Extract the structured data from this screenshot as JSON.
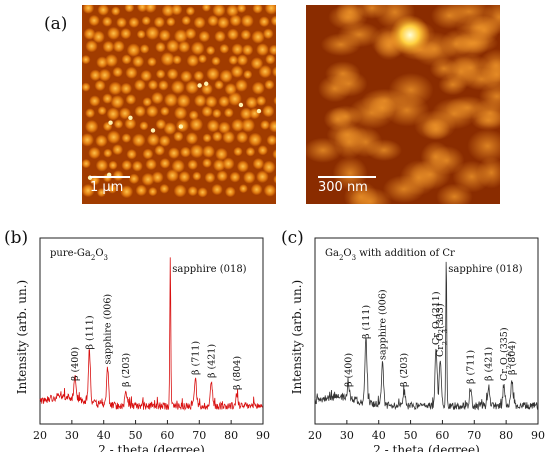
{
  "panel_labels": {
    "a": "(a)",
    "b": "(b)",
    "c": "(c)"
  },
  "afm": {
    "left_scale": "1 µm",
    "right_scale": "300 nm"
  },
  "chart_data": [
    {
      "type": "line",
      "panel": "(b)",
      "title": "pure-Ga2O3",
      "xlabel": "2 - theta (degree)",
      "ylabel": "Intensity (arb. un.)",
      "xlim": [
        20,
        90
      ],
      "xticks": [
        "20",
        "30",
        "40",
        "50",
        "60",
        "70",
        "80",
        "90"
      ],
      "line_color": "#d81010",
      "peaks": [
        {
          "x": 31.0,
          "h": 0.14,
          "label": "β (400)"
        },
        {
          "x": 35.5,
          "h": 0.35,
          "label": "β (111)"
        },
        {
          "x": 41.2,
          "h": 0.25,
          "label": "sapphire (006)"
        },
        {
          "x": 47.0,
          "h": 0.1,
          "label": "β (2̄03)"
        },
        {
          "x": 60.9,
          "h": 1.0,
          "label": "sapphire (018)"
        },
        {
          "x": 68.8,
          "h": 0.18,
          "label": "β (711)"
        },
        {
          "x": 73.8,
          "h": 0.16,
          "label": "β (421)"
        },
        {
          "x": 81.8,
          "h": 0.08,
          "label": "β (8̄04)"
        }
      ]
    },
    {
      "type": "line",
      "panel": "(c)",
      "title": "Ga2O3 with addition of Cr",
      "xlabel": "2 - theta (degree)",
      "ylabel": "Intensity (arb. un.)",
      "xlim": [
        20,
        90
      ],
      "xticks": [
        "20",
        "30",
        "40",
        "50",
        "60",
        "70",
        "80",
        "90"
      ],
      "line_color": "#333333",
      "peaks": [
        {
          "x": 30.5,
          "h": 0.1,
          "label": "β (400)"
        },
        {
          "x": 36.0,
          "h": 0.42,
          "label": "β (111)"
        },
        {
          "x": 41.2,
          "h": 0.28,
          "label": "sapphire (006)"
        },
        {
          "x": 48.0,
          "h": 0.1,
          "label": "β (2̄03)"
        },
        {
          "x": 58.0,
          "h": 0.38,
          "label": "Cr2O3(211)"
        },
        {
          "x": 59.3,
          "h": 0.3,
          "label": "Cr2O3(333)"
        },
        {
          "x": 61.2,
          "h": 1.0,
          "label": "sapphire (018)"
        },
        {
          "x": 68.8,
          "h": 0.12,
          "label": "β (711)"
        },
        {
          "x": 74.5,
          "h": 0.14,
          "label": "β (421)"
        },
        {
          "x": 79.3,
          "h": 0.14,
          "label": "Cr2O3(335)"
        },
        {
          "x": 81.8,
          "h": 0.18,
          "label": "β (8̄04)"
        }
      ]
    }
  ]
}
